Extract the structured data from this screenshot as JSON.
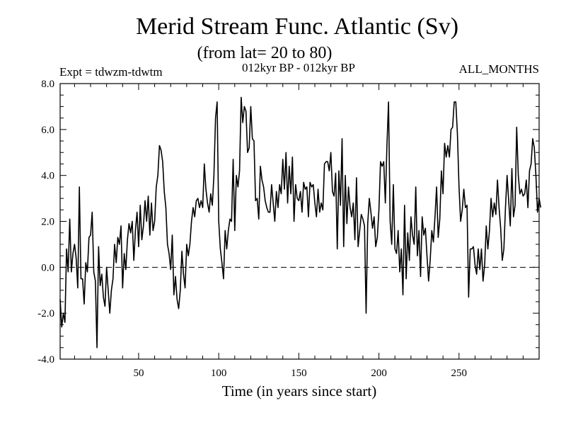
{
  "chart_data": {
    "type": "line",
    "title": "Merid Stream Func. Atlantic (Sv)",
    "subtitle": "(from lat= 20 to 80)",
    "left_note": "Expt = tdwzm-tdwtm",
    "center_note": "012kyr BP - 012kyr BP",
    "right_note": "ALL_MONTHS",
    "xlabel": "Time (in years since start)",
    "ylabel": "",
    "xlim": [
      1,
      300
    ],
    "ylim": [
      -4,
      8
    ],
    "x_ticks": [
      50,
      100,
      150,
      200,
      250
    ],
    "x_tick_labels": [
      "50",
      "100",
      "150",
      "200",
      "250"
    ],
    "y_ticks": [
      -4,
      -2,
      0,
      2,
      4,
      6,
      8
    ],
    "y_tick_labels": [
      "-4.0",
      "-2.0",
      "0.0",
      "2.0",
      "4.0",
      "6.0",
      "8.0"
    ],
    "reference_line": 0,
    "series": [
      {
        "name": "Merid Stream Func.",
        "x_start": 1,
        "x_step": 1,
        "values": [
          -1.4,
          -2.6,
          -2.0,
          -2.4,
          0.8,
          -0.2,
          2.1,
          -0.2,
          0.6,
          1.0,
          0.4,
          -0.9,
          3.5,
          -0.5,
          -0.5,
          -1.6,
          0.2,
          -0.2,
          1.3,
          1.4,
          2.4,
          -0.2,
          -0.6,
          -3.5,
          0.9,
          -0.8,
          -0.3,
          -1.3,
          -1.7,
          0.0,
          -1.0,
          -2.0,
          -1.0,
          -0.5,
          1.0,
          0.2,
          1.3,
          1.0,
          1.8,
          -0.9,
          0.6,
          -0.1,
          1.2,
          1.9,
          1.5,
          2.0,
          0.3,
          1.6,
          2.4,
          0.9,
          2.7,
          1.2,
          1.8,
          2.9,
          2.0,
          3.1,
          1.4,
          2.8,
          1.6,
          2.0,
          3.5,
          4.0,
          5.3,
          5.1,
          4.6,
          3.3,
          2.6,
          1.0,
          0.6,
          -0.1,
          1.4,
          -1.2,
          -0.4,
          -1.4,
          -1.8,
          -1.0,
          0.7,
          -0.3,
          -0.9,
          1.0,
          0.5,
          1.0,
          2.0,
          2.6,
          2.2,
          2.9,
          3.0,
          2.6,
          2.9,
          2.6,
          4.5,
          3.4,
          2.8,
          2.4,
          3.2,
          2.7,
          4.0,
          6.5,
          7.2,
          2.0,
          0.8,
          0.2,
          -0.5,
          1.6,
          0.8,
          1.6,
          2.1,
          2.0,
          4.7,
          1.6,
          4.0,
          3.5,
          4.2,
          7.4,
          6.3,
          7.0,
          6.8,
          5.0,
          5.2,
          7.0,
          5.6,
          5.5,
          2.9,
          3.0,
          2.1,
          4.4,
          3.8,
          3.5,
          2.9,
          2.6,
          2.4,
          2.4,
          3.6,
          2.8,
          2.0,
          3.3,
          2.6,
          3.6,
          3.2,
          4.7,
          3.4,
          5.0,
          2.8,
          4.4,
          3.2,
          4.8,
          2.0,
          3.6,
          3.0,
          2.9,
          3.3,
          2.4,
          3.7,
          3.4,
          3.5,
          2.2,
          3.7,
          3.5,
          3.6,
          2.8,
          2.2,
          3.4,
          2.4,
          2.8,
          2.5,
          4.5,
          4.6,
          4.6,
          4.2,
          5.0,
          3.3,
          3.1,
          4.1,
          0.8,
          4.2,
          2.7,
          5.6,
          0.9,
          4.0,
          1.9,
          3.5,
          2.6,
          2.2,
          2.8,
          1.2,
          3.9,
          0.9,
          1.6,
          2.3,
          2.1,
          1.8,
          -2.0,
          1.9,
          3.0,
          2.4,
          1.7,
          2.2,
          0.9,
          1.3,
          2.5,
          4.6,
          4.4,
          4.6,
          2.8,
          5.3,
          7.2,
          2.0,
          1.0,
          3.6,
          0.8,
          0.6,
          1.6,
          -0.2,
          0.8,
          -1.2,
          2.7,
          -0.5,
          1.5,
          0.3,
          2.2,
          1.4,
          1.0,
          3.5,
          0.5,
          1.6,
          -0.4,
          2.2,
          1.4,
          1.7,
          0.5,
          -0.6,
          0.3,
          1.6,
          1.1,
          2.2,
          3.5,
          1.3,
          2.1,
          4.2,
          3.2,
          5.4,
          4.8,
          5.3,
          4.8,
          6.0,
          6.1,
          7.2,
          7.2,
          5.8,
          3.5,
          2.0,
          2.5,
          3.4,
          2.6,
          2.7,
          -1.3,
          0.8,
          0.8,
          0.9,
          0.1,
          -0.3,
          0.8,
          -0.1,
          0.8,
          -0.6,
          0.1,
          1.8,
          0.8,
          1.6,
          3.0,
          2.2,
          2.8,
          2.3,
          3.8,
          2.6,
          1.7,
          0.3,
          0.8,
          2.6,
          4.0,
          2.9,
          1.8,
          4.3,
          2.2,
          2.7,
          6.1,
          4.0,
          3.2,
          3.4,
          3.1,
          3.2,
          3.8,
          2.6,
          4.2,
          4.5,
          5.6,
          5.2,
          4.0,
          2.4,
          3.0,
          2.6
        ]
      }
    ]
  }
}
